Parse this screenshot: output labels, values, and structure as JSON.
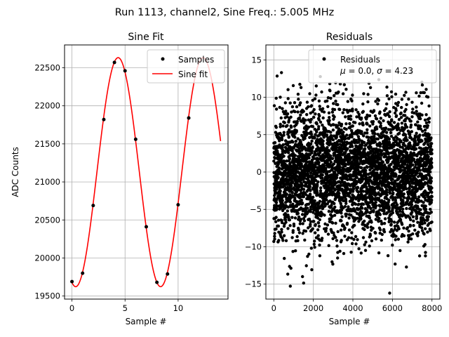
{
  "suptitle": "Run 1113, channel2, Sine Freq.: 5.005 MHz",
  "chart_data": [
    {
      "type": "line",
      "title": "Sine Fit",
      "xlabel": "Sample #",
      "ylabel": "ADC Counts",
      "xlim": [
        -0.7,
        14.7
      ],
      "ylim": [
        19460,
        22800
      ],
      "xticks": [
        0,
        5,
        10
      ],
      "yticks": [
        19500,
        20000,
        20500,
        21000,
        21500,
        22000,
        22500
      ],
      "grid": true,
      "legend_position": "top-right",
      "fit": {
        "amplitude": 1505,
        "offset": 21128,
        "period": 8.0,
        "peak_at": 4.35,
        "x_range": [
          0,
          14
        ]
      },
      "series": [
        {
          "name": "Samples",
          "kind": "points",
          "color": "#000000",
          "x": [
            0,
            1,
            2,
            3,
            4,
            5,
            6,
            7,
            8,
            9,
            10,
            11
          ],
          "y": [
            19690,
            19800,
            20690,
            21820,
            22570,
            22460,
            21560,
            20410,
            19680,
            19790,
            20700,
            21840
          ]
        },
        {
          "name": "Sine fit",
          "kind": "line",
          "color": "#ff0000"
        }
      ]
    },
    {
      "type": "scatter",
      "title": "Residuals",
      "xlabel": "Sample #",
      "xlim": [
        -400,
        8400
      ],
      "ylim": [
        -17,
        17
      ],
      "xticks": [
        0,
        2000,
        4000,
        6000,
        8000
      ],
      "yticks": [
        -15,
        -10,
        -5,
        0,
        5,
        10,
        15
      ],
      "grid": true,
      "legend_position": "top-right",
      "stats": {
        "mu": "0.0",
        "sigma": "4.23"
      },
      "n_points": 8000,
      "series": [
        {
          "name": "Residuals",
          "color": "#000000"
        }
      ]
    }
  ]
}
